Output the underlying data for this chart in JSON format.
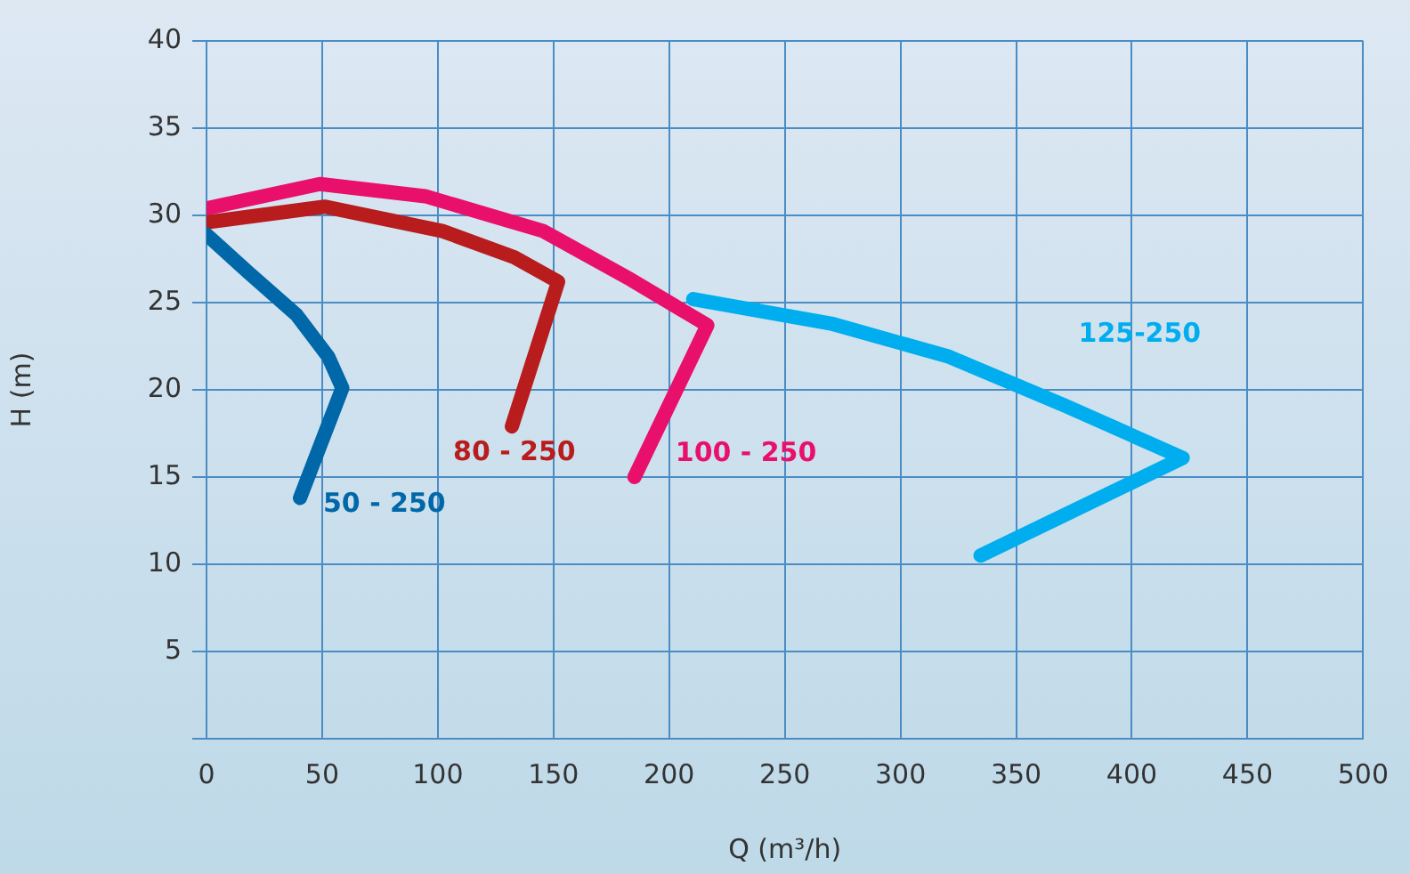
{
  "chart_data": {
    "type": "line",
    "xlabel": "Q (m³/h)",
    "ylabel": "H (m)",
    "xlim": [
      0,
      500
    ],
    "xticks": [
      0,
      50,
      100,
      150,
      200,
      250,
      300,
      350,
      400,
      450,
      500
    ],
    "ylim": [
      0,
      40
    ],
    "yticks": [
      {
        "value": 0,
        "label": null
      },
      5,
      10,
      15,
      20,
      25,
      30,
      35,
      40
    ],
    "grid": true,
    "legend": false,
    "marker": "none",
    "line_style": "solid",
    "series": [
      {
        "name": "50 - 250",
        "color": "#0067a8",
        "x": [
          0,
          18.3,
          38.9,
          52.6,
          58.7,
          40.4
        ],
        "values": [
          28.9,
          26.7,
          24.3,
          21.9,
          20.1,
          13.8
        ]
      },
      {
        "name": "80 - 250",
        "color": "#b81c1c",
        "x": [
          0,
          51,
          102,
          133,
          152,
          132
        ],
        "values": [
          29.6,
          30.5,
          29.1,
          27.6,
          26.2,
          17.9
        ]
      },
      {
        "name": "100 - 250",
        "color": "#e8106a",
        "x": [
          0,
          49,
          94.5,
          145.6,
          183.7,
          216.5,
          185
        ],
        "values": [
          30.4,
          31.8,
          31.1,
          29.1,
          26.3,
          23.7,
          15
        ]
      },
      {
        "name": "125-250",
        "color": "#00aeef",
        "x": [
          210.4,
          270,
          321,
          371,
          422,
          334.6
        ],
        "values": [
          25.2,
          23.8,
          21.9,
          19.1,
          16.1,
          10.5
        ]
      }
    ]
  }
}
